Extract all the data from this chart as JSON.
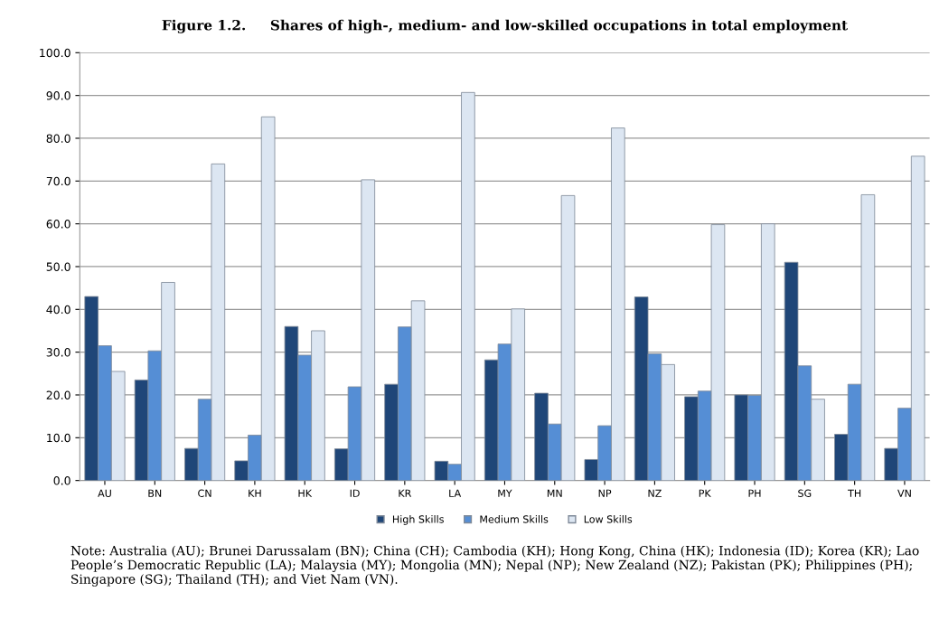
{
  "chart_data": {
    "type": "bar",
    "title": "Figure 1.2.     Shares of high-, medium- and low-skilled occupations in total employment",
    "categories": [
      "AU",
      "BN",
      "CN",
      "KH",
      "HK",
      "ID",
      "KR",
      "LA",
      "MY",
      "MN",
      "NP",
      "NZ",
      "PK",
      "PH",
      "SG",
      "TH",
      "VN"
    ],
    "series": [
      {
        "name": "High Skills",
        "color": "#1f4678",
        "values": [
          43.0,
          23.5,
          7.5,
          4.6,
          36.0,
          7.4,
          22.5,
          4.5,
          28.2,
          20.4,
          4.9,
          42.9,
          19.6,
          20.0,
          51.0,
          10.8,
          7.5
        ]
      },
      {
        "name": "Medium Skills",
        "color": "#558ed5",
        "values": [
          31.5,
          30.3,
          19.0,
          10.6,
          29.3,
          21.9,
          35.9,
          3.8,
          31.9,
          13.2,
          12.8,
          29.6,
          20.9,
          19.9,
          26.8,
          22.5,
          16.9
        ]
      },
      {
        "name": "Low Skills",
        "color": "#dce6f2",
        "values": [
          25.5,
          46.3,
          74.0,
          85.0,
          35.0,
          70.3,
          42.0,
          90.7,
          40.1,
          66.6,
          82.4,
          27.1,
          59.8,
          60.0,
          19.0,
          66.8,
          75.8
        ]
      }
    ],
    "ylim": [
      0,
      100
    ],
    "yticks": [
      {
        "value": 0,
        "label": "0.0"
      },
      {
        "value": 10,
        "label": "10.0"
      },
      {
        "value": 20,
        "label": "20.0"
      },
      {
        "value": 30,
        "label": "30.0"
      },
      {
        "value": 40,
        "label": "40.0"
      },
      {
        "value": 50,
        "label": "50.0"
      },
      {
        "value": 60,
        "label": "60.0"
      },
      {
        "value": 70,
        "label": "70.0"
      },
      {
        "value": 80,
        "label": "80.0"
      },
      {
        "value": 90,
        "label": "90.0"
      },
      {
        "value": 100,
        "label": "100.0"
      }
    ],
    "grid": "y",
    "legend": "bottom",
    "annotations": [
      "Note: Australia (AU); Brunei Darussalam (BN); China (CH); Cambodia (KH); Hong Kong, China (HK); Indonesia (ID); Korea (KR); Lao People’s Democratic Republic (LA); Malaysia (MY); Mongolia (MN); Nepal (NP); New Zealand (NZ); Pakistan (PK); Philippines (PH); Singapore (SG); Thailand (TH); and Viet Nam (VN)."
    ]
  }
}
